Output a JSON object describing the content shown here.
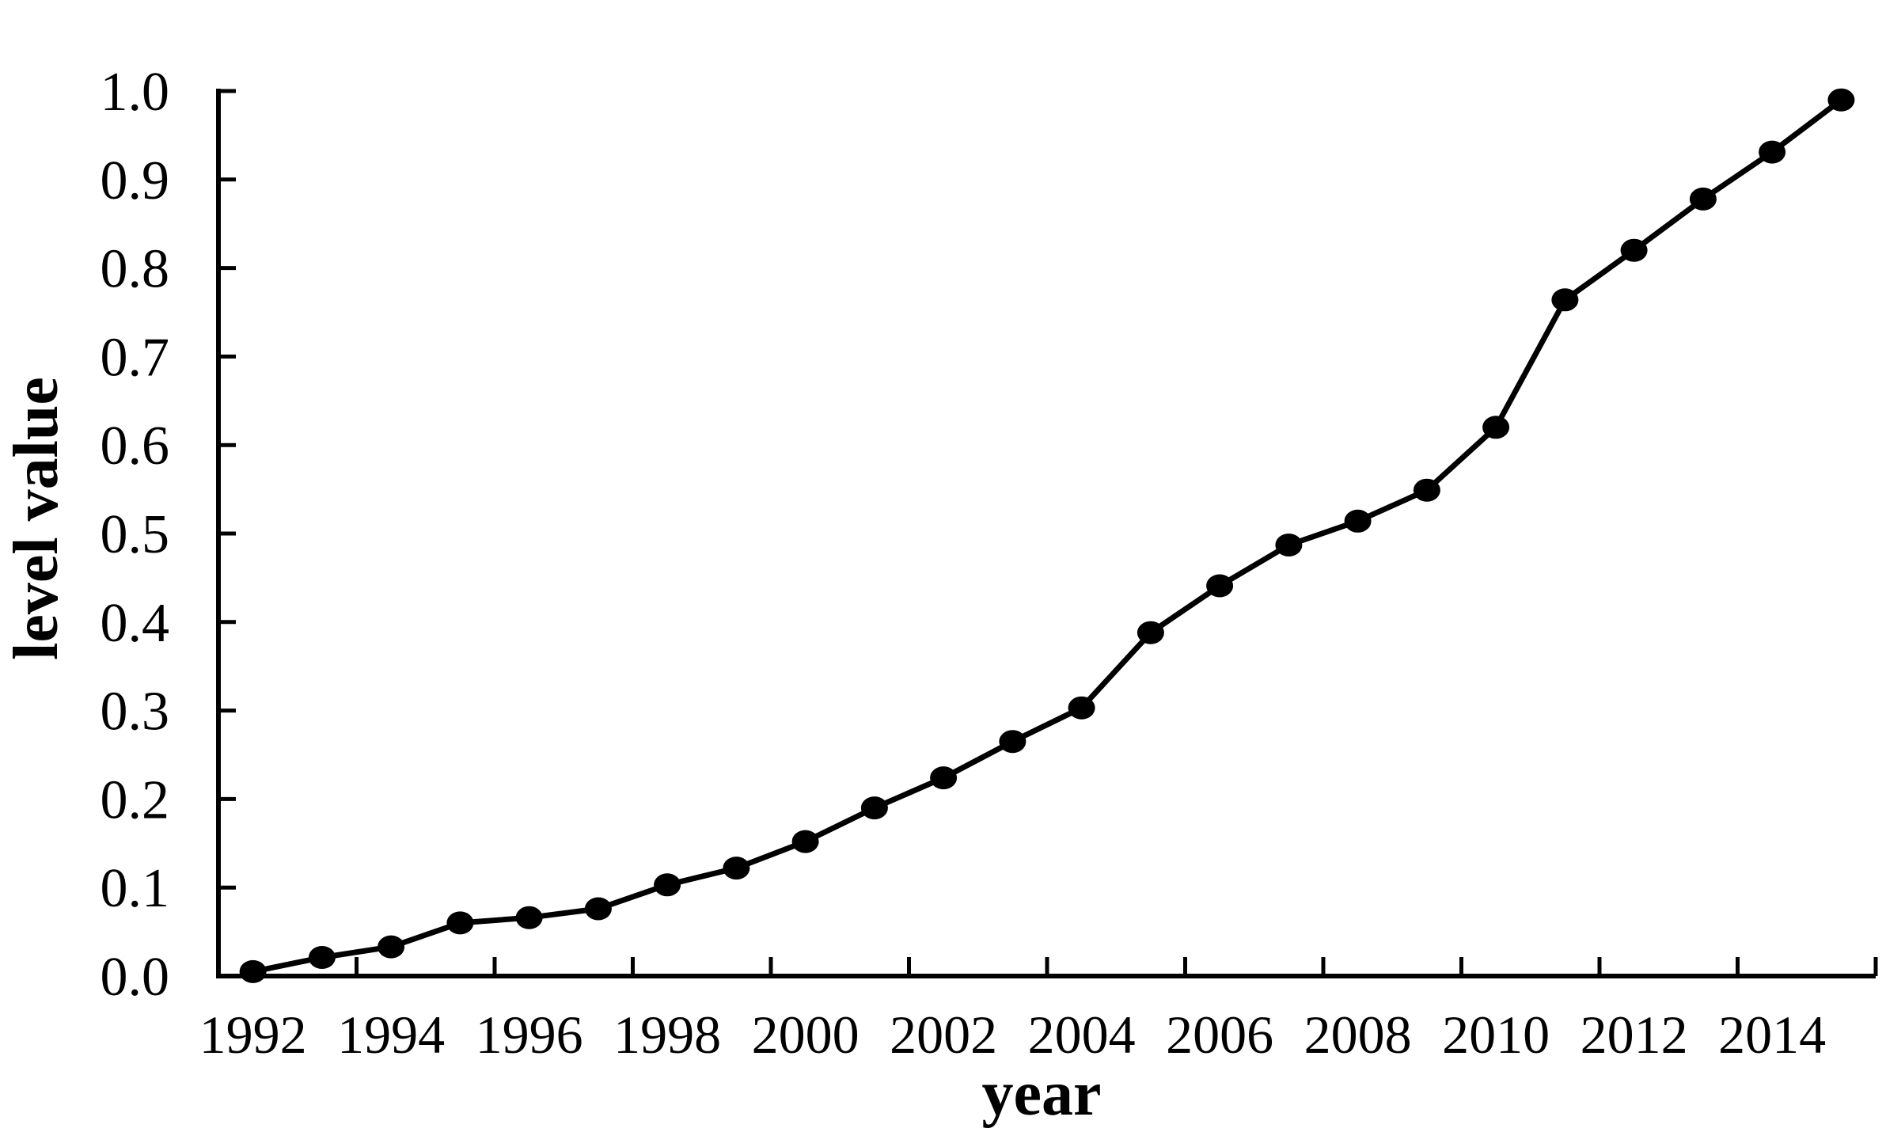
{
  "chart_data": {
    "type": "line",
    "title": "",
    "xlabel": "year",
    "ylabel": "level value",
    "x": [
      1992,
      1993,
      1994,
      1995,
      1996,
      1997,
      1998,
      1999,
      2000,
      2001,
      2002,
      2003,
      2004,
      2005,
      2006,
      2007,
      2008,
      2009,
      2010,
      2011,
      2012,
      2013,
      2014,
      2015
    ],
    "series": [
      {
        "name": "level value",
        "values": [
          0.005,
          0.021,
          0.033,
          0.06,
          0.066,
          0.076,
          0.103,
          0.122,
          0.152,
          0.19,
          0.224,
          0.265,
          0.303,
          0.388,
          0.441,
          0.487,
          0.514,
          0.549,
          0.62,
          0.764,
          0.82,
          0.878,
          0.931,
          0.99
        ]
      }
    ],
    "x_tick_labels": [
      "1992",
      "1994",
      "1996",
      "1998",
      "2000",
      "2002",
      "2004",
      "2006",
      "2008",
      "2010",
      "2012",
      "2014"
    ],
    "y_tick_labels": [
      "0.0",
      "0.1",
      "0.2",
      "0.3",
      "0.4",
      "0.5",
      "0.6",
      "0.7",
      "0.8",
      "0.9",
      "1.0"
    ],
    "ylim": [
      0.0,
      1.0
    ],
    "grid": false,
    "legend": false,
    "line_color": "#000000",
    "marker": "filled-circle",
    "marker_color": "#000000",
    "background": "#ffffff"
  }
}
